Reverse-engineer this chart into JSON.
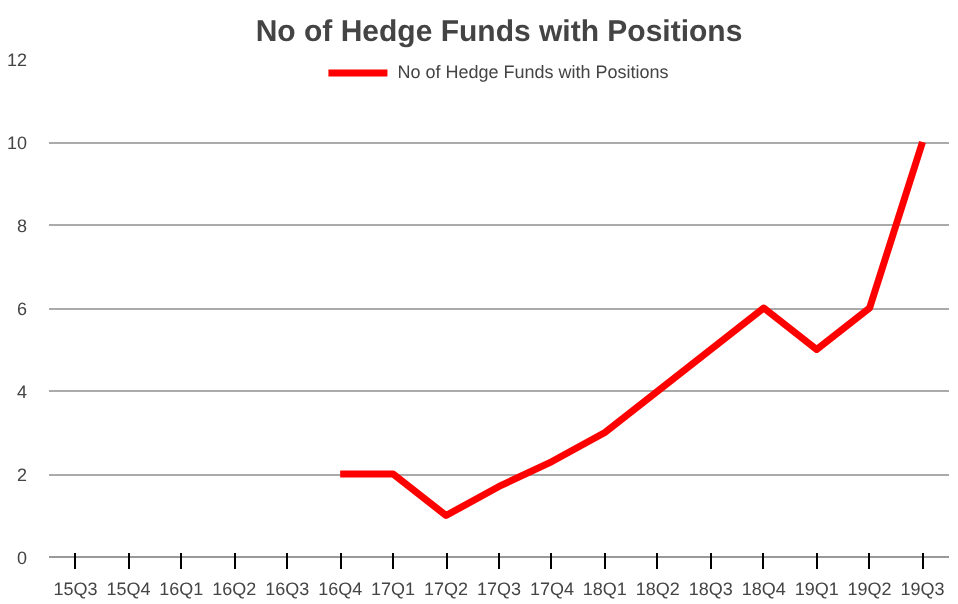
{
  "chart_data": {
    "type": "line",
    "title": "No of Hedge Funds with Positions",
    "categories": [
      "15Q3",
      "15Q4",
      "16Q1",
      "16Q2",
      "16Q3",
      "16Q4",
      "17Q1",
      "17Q2",
      "17Q3",
      "17Q4",
      "18Q1",
      "18Q2",
      "18Q3",
      "18Q4",
      "19Q1",
      "19Q2",
      "19Q3"
    ],
    "series": [
      {
        "name": "No of Hedge Funds with Positions",
        "color": "#ff0000",
        "values": [
          null,
          null,
          null,
          null,
          null,
          2,
          2,
          1,
          1.7,
          2.3,
          3,
          4,
          5,
          6,
          5,
          6,
          10
        ]
      }
    ],
    "ylim": [
      0,
      12
    ],
    "yticks": [
      0,
      2,
      4,
      6,
      8,
      10,
      12
    ],
    "grid": "y",
    "legend": "top",
    "marker": "none",
    "line_style": "solid"
  }
}
